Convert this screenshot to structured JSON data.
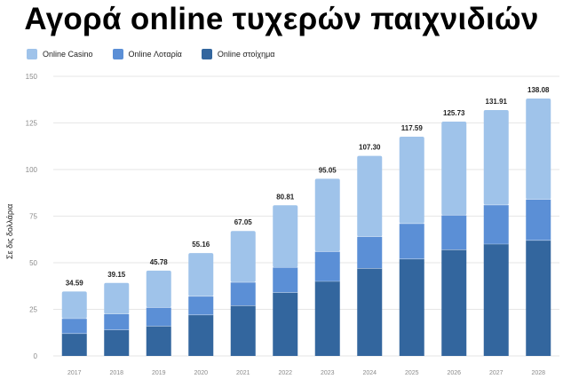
{
  "title": "Αγορά online τυχερών παιχνιδιών",
  "colors": {
    "casino": "#9fc3ea",
    "lottery": "#5b8fd6",
    "betting": "#33669e",
    "grid": "#e6e6e6",
    "axis_text": "#8a8a8a"
  },
  "chart_data": {
    "type": "bar",
    "stacked": true,
    "title": "Αγορά online τυχερών παιχνιδιών",
    "ylabel": "Σε δις δολλάρια",
    "xlabel": "",
    "ylim": [
      0,
      150
    ],
    "yticks": [
      "0",
      "25",
      "50",
      "75",
      "100",
      "125",
      "150"
    ],
    "grid": true,
    "legend_position": "top-left",
    "categories": [
      "2017",
      "2018",
      "2019",
      "2020",
      "2021",
      "2022",
      "2023",
      "2024",
      "2025",
      "2026",
      "2027",
      "2028"
    ],
    "series": [
      {
        "name": "Online στοίχημα",
        "color": "#33669e",
        "values": [
          12,
          14,
          16,
          22,
          27,
          34,
          40,
          47,
          52,
          57,
          60,
          62
        ]
      },
      {
        "name": "Online Λοταρία",
        "color": "#5b8fd6",
        "values": [
          8,
          8.5,
          10,
          10,
          12.5,
          13.5,
          16,
          17,
          19,
          18.5,
          21,
          22
        ]
      },
      {
        "name": "Online Casino",
        "color": "#9fc3ea",
        "values": [
          14.59,
          16.65,
          19.78,
          23.16,
          27.55,
          33.31,
          39.05,
          43.3,
          46.59,
          50.23,
          50.91,
          54.08
        ]
      }
    ],
    "totals": [
      "34.59",
      "39.15",
      "45.78",
      "55.16",
      "67.05",
      "80.81",
      "95.05",
      "107.30",
      "117.59",
      "125.73",
      "131.91",
      "138.08"
    ]
  }
}
